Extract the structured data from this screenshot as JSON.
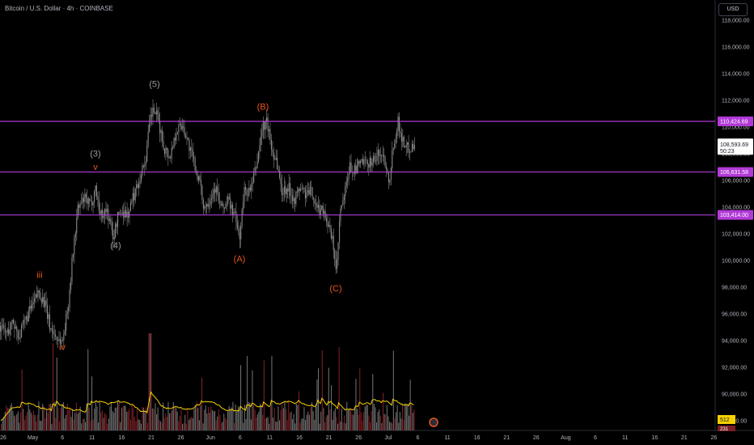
{
  "header": {
    "title": "Bitcoin / U.S. Dollar · 4h · COINBASE",
    "currency": "USD"
  },
  "colors": {
    "background": "#000000",
    "candle": "#8a8a8a",
    "level_line": "#b13ad6",
    "label_orange": "#e8561c",
    "label_gray": "#9a9a9a",
    "volume_ma": "#f5d100",
    "volume_up": "#6b6b6b",
    "volume_down": "#7a1f24"
  },
  "price_axis": {
    "ticks": [
      "118,000.00",
      "116,000.00",
      "114,000.00",
      "112,000.00",
      "110,000.00",
      "108,000.00",
      "106,000.00",
      "104,000.00",
      "102,000.00",
      "100,000.00",
      "98,000.00",
      "96,000.00",
      "94,000.00",
      "92,000.00",
      "90,000.00",
      "88,000.00"
    ],
    "levels": [
      {
        "label": "110,424.69",
        "value": 110424.69
      },
      {
        "label": "106,631.58",
        "value": 106631.58
      },
      {
        "label": "103,414.00",
        "value": 103414.0
      }
    ],
    "last_price": "108,593.69",
    "countdown": "50:23",
    "volume_ma_value": "512",
    "volume_value": "231"
  },
  "time_axis": [
    "26",
    "May",
    "6",
    "11",
    "16",
    "21",
    "26",
    "Jun",
    "6",
    "11",
    "16",
    "21",
    "26",
    "Jul",
    "6",
    "11",
    "16",
    "21",
    "26",
    "Aug",
    "6",
    "11",
    "16",
    "21",
    "26"
  ],
  "wave_labels": [
    {
      "text": "iii",
      "color": "orange",
      "price": 98700,
      "t": 49
    },
    {
      "text": "iv",
      "color": "orange",
      "price": 93300,
      "t": 77
    },
    {
      "text": "(3)",
      "color": "gray",
      "price": 107800,
      "t": 118
    },
    {
      "text": "v",
      "color": "orange",
      "price": 106800,
      "t": 118
    },
    {
      "text": "(4)",
      "color": "gray",
      "price": 100900,
      "t": 143
    },
    {
      "text": "(5)",
      "color": "gray",
      "price": 113000,
      "t": 191
    },
    {
      "text": "(A)",
      "color": "orange",
      "price": 99900,
      "t": 296
    },
    {
      "text": "(B)",
      "color": "orange",
      "price": 111300,
      "t": 325
    },
    {
      "text": "(C)",
      "color": "orange",
      "price": 97700,
      "t": 415
    }
  ],
  "chart_data": {
    "type": "line",
    "title": "Bitcoin / U.S. Dollar · 4h · COINBASE",
    "ylim": [
      87000,
      119000
    ],
    "price_path": [
      [
        0,
        95100
      ],
      [
        8,
        94500
      ],
      [
        16,
        95400
      ],
      [
        24,
        94300
      ],
      [
        32,
        95600
      ],
      [
        40,
        96600
      ],
      [
        48,
        97700
      ],
      [
        55,
        96800
      ],
      [
        62,
        95000
      ],
      [
        70,
        94200
      ],
      [
        77,
        93900
      ],
      [
        84,
        96500
      ],
      [
        90,
        100500
      ],
      [
        96,
        103800
      ],
      [
        104,
        104600
      ],
      [
        112,
        104100
      ],
      [
        118,
        105500
      ],
      [
        124,
        103400
      ],
      [
        132,
        103800
      ],
      [
        140,
        101700
      ],
      [
        146,
        103400
      ],
      [
        152,
        103700
      ],
      [
        158,
        103400
      ],
      [
        164,
        104600
      ],
      [
        172,
        106100
      ],
      [
        180,
        107600
      ],
      [
        186,
        110700
      ],
      [
        190,
        111300
      ],
      [
        196,
        110400
      ],
      [
        202,
        108600
      ],
      [
        210,
        107700
      ],
      [
        218,
        109800
      ],
      [
        226,
        110200
      ],
      [
        234,
        108500
      ],
      [
        240,
        107300
      ],
      [
        246,
        106000
      ],
      [
        252,
        104000
      ],
      [
        258,
        104500
      ],
      [
        266,
        105500
      ],
      [
        274,
        103800
      ],
      [
        282,
        104500
      ],
      [
        290,
        103400
      ],
      [
        296,
        101700
      ],
      [
        302,
        105200
      ],
      [
        310,
        105200
      ],
      [
        318,
        107500
      ],
      [
        324,
        109900
      ],
      [
        330,
        110400
      ],
      [
        336,
        108300
      ],
      [
        342,
        107500
      ],
      [
        348,
        105200
      ],
      [
        356,
        105500
      ],
      [
        364,
        104600
      ],
      [
        372,
        105500
      ],
      [
        378,
        104900
      ],
      [
        386,
        105200
      ],
      [
        392,
        103800
      ],
      [
        400,
        103900
      ],
      [
        406,
        102500
      ],
      [
        412,
        101200
      ],
      [
        416,
        98900
      ],
      [
        420,
        103400
      ],
      [
        426,
        104900
      ],
      [
        432,
        107000
      ],
      [
        440,
        106700
      ],
      [
        446,
        107500
      ],
      [
        452,
        107100
      ],
      [
        458,
        107500
      ],
      [
        464,
        107600
      ],
      [
        470,
        108100
      ],
      [
        476,
        107500
      ],
      [
        481,
        106000
      ],
      [
        486,
        108600
      ],
      [
        492,
        110400
      ],
      [
        498,
        108900
      ],
      [
        504,
        108400
      ],
      [
        510,
        108600
      ],
      [
        513,
        108600
      ]
    ]
  }
}
